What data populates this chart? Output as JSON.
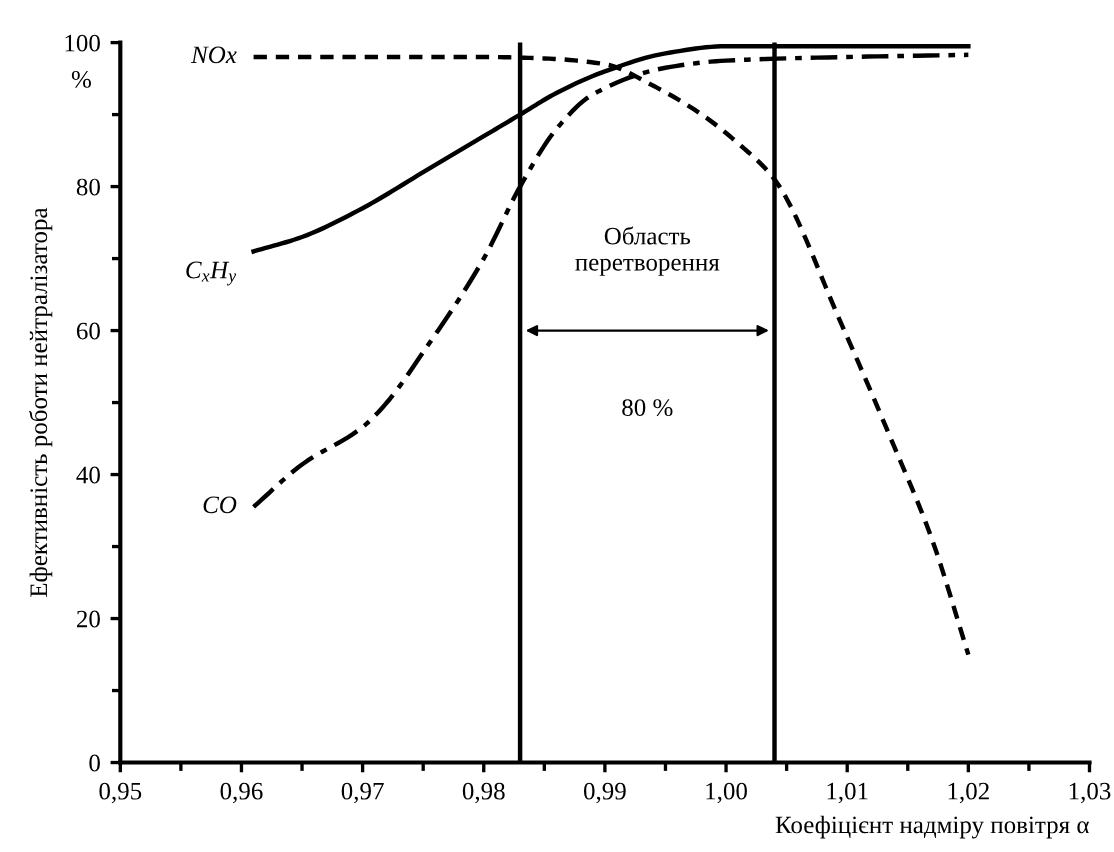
{
  "chart_data": {
    "type": "line",
    "xlabel": "Коефіцієнт надміру повітря α",
    "ylabel": "Ефективність роботи нейтралізатора",
    "xlim": [
      0.95,
      1.03
    ],
    "xticks": [
      {
        "value": 0.95,
        "label": "0,95"
      },
      {
        "value": 0.96,
        "label": "0,96"
      },
      {
        "value": 0.97,
        "label": "0,97"
      },
      {
        "value": 0.98,
        "label": "0,98"
      },
      {
        "value": 0.99,
        "label": "0,99"
      },
      {
        "value": 1.0,
        "label": "1,00"
      },
      {
        "value": 1.01,
        "label": "1,01"
      },
      {
        "value": 1.02,
        "label": "1,02"
      },
      {
        "value": 1.03,
        "label": "1,03"
      }
    ],
    "ylim": [
      0,
      100
    ],
    "yticks": [
      0,
      20,
      40,
      60,
      80,
      100
    ],
    "grid": false,
    "legend": false,
    "series": [
      {
        "name": "C$_{x}$H$_{y}$",
        "color": "#000000",
        "line_style": "solid",
        "x": [
          0.961,
          0.965,
          0.97,
          0.975,
          0.98,
          0.983,
          0.986,
          0.99,
          0.995,
          1.0,
          1.005,
          1.01,
          1.02
        ],
        "values": [
          71,
          73,
          77,
          82,
          87,
          90,
          93,
          96,
          98.5,
          99.5,
          99.5,
          99.5,
          99.5
        ]
      },
      {
        "name": "NOx",
        "color": "#000000",
        "line_style": "dashed",
        "x": [
          0.961,
          0.97,
          0.98,
          0.985,
          0.99,
          0.994,
          0.998,
          1.001,
          1.004,
          1.0095,
          1.0136,
          1.017,
          1.02
        ],
        "values": [
          98,
          98,
          98,
          97.8,
          97,
          94,
          90,
          86,
          81,
          61,
          45,
          31,
          15
        ]
      },
      {
        "name": "CO",
        "color": "#000000",
        "line_style": "dashdot",
        "x": [
          0.961,
          0.965,
          0.97,
          0.972,
          0.975,
          0.98,
          0.983,
          0.986,
          0.989,
          0.995,
          1.0,
          1.01,
          1.02
        ],
        "values": [
          35.5,
          41.4,
          46.6,
          50,
          57,
          70,
          80,
          88,
          92.8,
          96.5,
          97.5,
          98,
          98.3
        ]
      }
    ],
    "ref_lines": [
      {
        "axis": "x",
        "value": 0.983,
        "color": "#000000",
        "line_style": "solid"
      },
      {
        "axis": "x",
        "value": 1.004,
        "color": "#000000",
        "line_style": "solid"
      }
    ],
    "annotations": [
      "%",
      "Область\nперетворення",
      "80 %"
    ]
  }
}
